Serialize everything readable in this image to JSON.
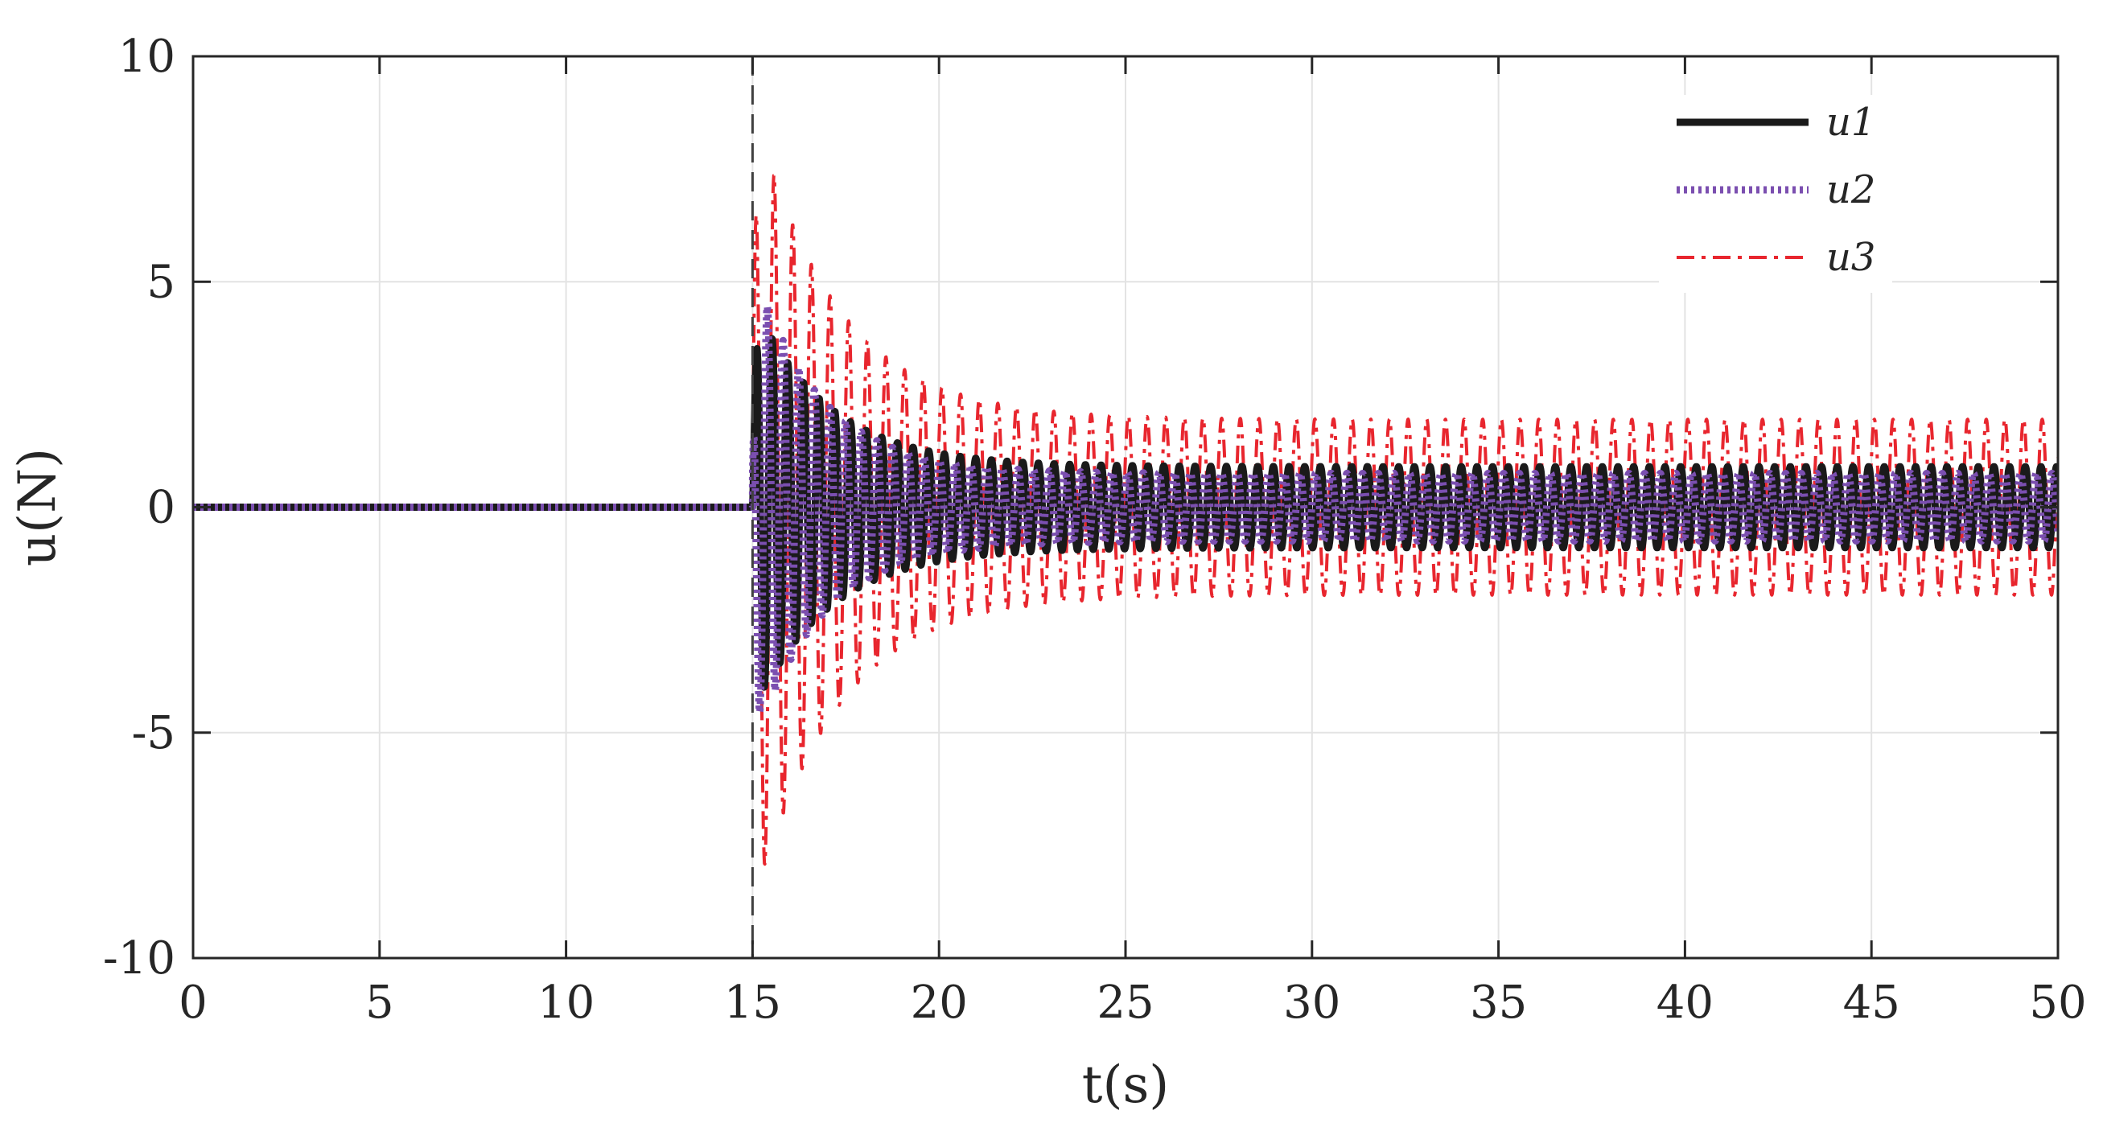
{
  "chart_data": {
    "type": "line",
    "title": "",
    "xlabel": "t(s)",
    "ylabel": "u(N)",
    "xlim": [
      0,
      50
    ],
    "ylim": [
      -10,
      10
    ],
    "xticks": [
      "0",
      "5",
      "10",
      "15",
      "20",
      "25",
      "30",
      "35",
      "40",
      "45",
      "50"
    ],
    "yticks": [
      "10",
      "5",
      "0",
      "-5",
      "-10"
    ],
    "grid": true,
    "legend_position": "top-right",
    "event_marker": {
      "x": 15,
      "style": "dashed",
      "color": "#404040"
    },
    "series": [
      {
        "name": "u1",
        "color": "#1a1a1a",
        "style": "solid",
        "before_event": 0,
        "initial_peak": 4.6,
        "steady_amplitude": 0.9,
        "period": 0.42,
        "decay_time": 2.0,
        "peaks": [
          {
            "t": 15.4,
            "value": 3.7
          },
          {
            "t": 15.9,
            "value": -3.8
          },
          {
            "t": 16.3,
            "value": 4.6
          },
          {
            "t": 16.7,
            "value": -3.4
          },
          {
            "t": 17.6,
            "value": 2.1
          },
          {
            "t": 18.2,
            "value": 1.4
          },
          {
            "t": 25.0,
            "value": 0.9
          },
          {
            "t": 50.0,
            "value": 0.9
          }
        ]
      },
      {
        "name": "u2",
        "color": "#7b4fb0",
        "style": "dotted",
        "before_event": 0,
        "initial_peak": 5.4,
        "steady_amplitude": 0.75,
        "period": 0.42,
        "decay_time": 1.8,
        "peaks": [
          {
            "t": 15.1,
            "value": -4.8
          },
          {
            "t": 15.3,
            "value": 5.4
          },
          {
            "t": 16.0,
            "value": -3.0
          },
          {
            "t": 16.4,
            "value": 3.6
          },
          {
            "t": 25.0,
            "value": 0.75
          },
          {
            "t": 50.0,
            "value": 0.75
          }
        ]
      },
      {
        "name": "u3",
        "color": "#e8262e",
        "style": "dashdot",
        "before_event": 0,
        "initial_peak": 9.0,
        "steady_amplitude": 1.95,
        "period": 0.5,
        "decay_time": 2.2,
        "peaks": [
          {
            "t": 15.4,
            "value": 9.0
          },
          {
            "t": 15.7,
            "value": -6.5
          },
          {
            "t": 16.2,
            "value": 7.8
          },
          {
            "t": 16.5,
            "value": -6.5
          },
          {
            "t": 17.0,
            "value": 4.8
          },
          {
            "t": 17.5,
            "value": 3.8
          },
          {
            "t": 20.0,
            "value": 1.95
          },
          {
            "t": 50.0,
            "value": 1.95
          }
        ]
      }
    ]
  }
}
